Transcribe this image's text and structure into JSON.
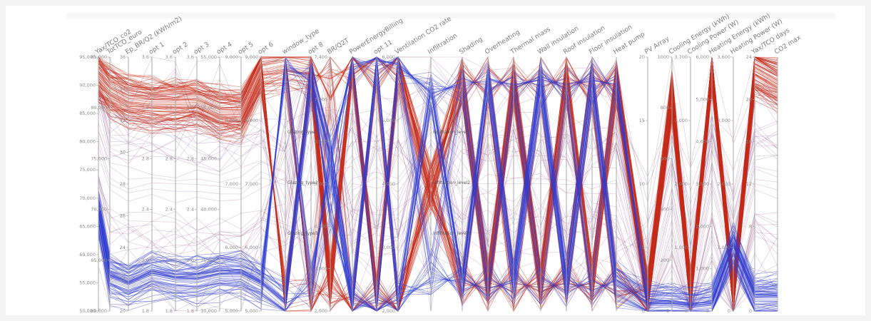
{
  "chart_data": {
    "type": "parallel-coordinates",
    "axes": [
      {
        "label": "Yax/TCO_co2",
        "range": [
          50000,
          95000
        ],
        "ticks": [
          "95,000",
          "90,000",
          "85,000",
          "80,000",
          "75,000",
          "70,000",
          "65,000",
          "60,000",
          "55,000",
          "50,000"
        ]
      },
      {
        "label": "TotTCO_euro",
        "range": [
          60000,
          85000
        ],
        "ticks": [
          "85,000",
          "80,000",
          "75,000",
          "70,000",
          "65,000",
          "60,000"
        ]
      },
      {
        "label": "Ep_BR/Q2 (kWh/m2)",
        "range": [
          20,
          36
        ],
        "ticks": [
          "36",
          "34",
          "32",
          "30",
          "28",
          "26",
          "24",
          "22",
          "20"
        ]
      },
      {
        "label": "opt 1",
        "range": [
          1.8,
          3.6
        ],
        "ticks": [
          "3.6",
          "3.2",
          "2.8",
          "2.4",
          "2.0",
          "1.8"
        ]
      },
      {
        "label": "opt 2",
        "range": [
          1.8,
          3.6
        ],
        "ticks": [
          "3.6",
          "3.2",
          "2.8",
          "2.4",
          "2.0",
          "1.8"
        ]
      },
      {
        "label": "opt 3",
        "range": [
          1.8,
          3.6
        ],
        "ticks": [
          "3.6",
          "3.2",
          "2.8",
          "2.4",
          "2.0",
          "1.8"
        ]
      },
      {
        "label": "opt 4",
        "range": [
          30000,
          55000
        ],
        "ticks": [
          "55,000",
          "50,000",
          "45,000",
          "40,000",
          "35,000",
          "30,000"
        ]
      },
      {
        "label": "opt 5",
        "range": [
          5,
          9
        ],
        "ticks": [
          "9,000",
          "8,000",
          "7,000",
          "6,000",
          "5,000"
        ]
      },
      {
        "label": "opt 6",
        "range": [
          5,
          9
        ],
        "ticks": [
          "9,000",
          "8,000",
          "7,000",
          "6,000",
          "5,000"
        ]
      },
      {
        "label": "window_type",
        "range": [
          0,
          1
        ],
        "ticks": [],
        "categories": [
          "Glazing_type1",
          "Glazing_type2",
          "Glazing_type3"
        ]
      },
      {
        "label": "opt 8",
        "range": [
          0,
          1
        ],
        "ticks": []
      },
      {
        "label": "BR/Q2T",
        "range": [
          2000,
          7400
        ],
        "ticks": [
          "7,400",
          "7,000",
          "6,000",
          "5,000",
          "4,000",
          "3,000",
          "2,000"
        ]
      },
      {
        "label": "PowerEnergyBilling",
        "range": [
          0,
          1
        ],
        "ticks": []
      },
      {
        "label": "opt 11",
        "range": [
          0,
          1
        ],
        "ticks": []
      },
      {
        "label": "Ventilation CO2 rate",
        "range": [
          2000,
          6000
        ],
        "ticks": [
          "6,000",
          "5,000",
          "4,000",
          "3,000",
          "2,000"
        ]
      },
      {
        "label": "Infiltration",
        "range": [
          0,
          1
        ],
        "ticks": [],
        "categories": [
          "Infiltration_level1",
          "Infiltration_level2",
          "Infiltration_level3"
        ]
      },
      {
        "label": "Shading",
        "range": [
          0,
          1
        ],
        "ticks": []
      },
      {
        "label": "Overheating",
        "range": [
          0,
          1
        ],
        "ticks": []
      },
      {
        "label": "Thermal mass",
        "range": [
          0,
          1
        ],
        "ticks": []
      },
      {
        "label": "Wall insulation",
        "range": [
          0,
          1
        ],
        "ticks": []
      },
      {
        "label": "Roof insulation",
        "range": [
          0,
          1
        ],
        "ticks": []
      },
      {
        "label": "Floor insulation",
        "range": [
          0,
          1
        ],
        "ticks": []
      },
      {
        "label": "Heat pump",
        "range": [
          0,
          1
        ],
        "ticks": []
      },
      {
        "label": "PV Array",
        "range": [
          0,
          20
        ],
        "ticks": [
          "20",
          "15",
          "10",
          "5",
          "0"
        ]
      },
      {
        "label": "Cooling Energy (kWh)",
        "range": [
          0,
          1000
        ],
        "ticks": [
          "1000",
          "800",
          "600",
          "400",
          "200",
          "0"
        ]
      },
      {
        "label": "Cooling Power (W)",
        "range": [
          0,
          3700
        ],
        "ticks": [
          "3,700",
          "3,000",
          "2,000",
          "1,000",
          "0"
        ]
      },
      {
        "label": "Heating Energy (kWh)",
        "range": [
          0,
          6000
        ],
        "ticks": [
          "6,000",
          "5,000",
          "4,000",
          "3,000",
          "2,000",
          "1,000",
          "0"
        ]
      },
      {
        "label": "Heating Power (W)",
        "range": [
          0,
          3600
        ],
        "ticks": [
          "3,600",
          "3,000",
          "2,000",
          "1,000",
          "0"
        ]
      },
      {
        "label": "Yax/TCO days",
        "range": [
          0,
          24
        ],
        "ticks": [
          "24",
          "20",
          "16",
          "12",
          "8",
          "4",
          "0"
        ]
      },
      {
        "label": "CO2 max",
        "range": [
          0,
          1
        ],
        "ticks": []
      }
    ],
    "color_scale": {
      "low": "#2a3fd0",
      "mid": "#c8c0d8",
      "high": "#c8260e"
    },
    "red_group_range_first_axis": [
      70000,
      95000
    ],
    "blue_group_range_first_axis": [
      50000,
      58000
    ],
    "grid": true,
    "legend": "none"
  },
  "colors": {
    "background": "#ffffff",
    "axis_line": "#a8a8a8",
    "red": "#cc2a10",
    "blue": "#2c3dd6",
    "purple": "#7a1e5a"
  }
}
